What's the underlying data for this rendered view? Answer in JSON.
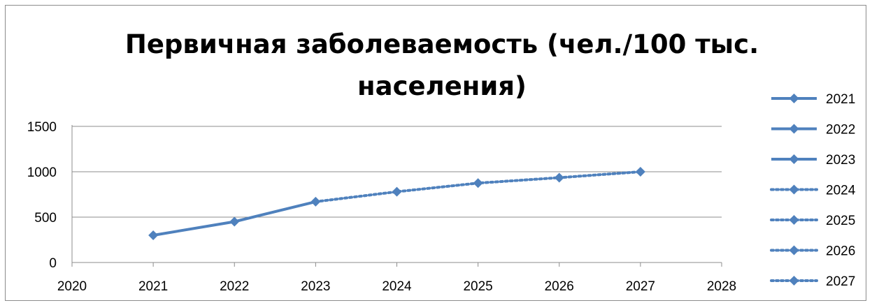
{
  "chart_data": {
    "type": "line",
    "title": "Первичная заболеваемость (чел./100 тыс. населения)",
    "title_lines": [
      "Первичная заболеваемость (чел./100 тыс.",
      "населения)"
    ],
    "xlabel": "",
    "ylabel": "",
    "xlim": [
      2020,
      2028
    ],
    "ylim": [
      0,
      1500
    ],
    "x_ticks": [
      "2020",
      "2021",
      "2022",
      "2023",
      "2024",
      "2025",
      "2026",
      "2027",
      "2028"
    ],
    "y_ticks": [
      "0",
      "500",
      "1000",
      "1500"
    ],
    "grid": true,
    "legend_position": "right",
    "color": "#4f81bd",
    "actual": {
      "style": "solid",
      "x": [
        2021,
        2022,
        2023
      ],
      "y": [
        300,
        450,
        670
      ]
    },
    "forecast": {
      "style": "dotted",
      "x": [
        2023,
        2024,
        2025,
        2026,
        2027
      ],
      "y": [
        670,
        780,
        875,
        935,
        1000
      ]
    },
    "legend": [
      {
        "label": "2021",
        "style": "solid"
      },
      {
        "label": "2022",
        "style": "solid"
      },
      {
        "label": "2023",
        "style": "solid"
      },
      {
        "label": "2024",
        "style": "dotted"
      },
      {
        "label": "2025",
        "style": "dotted"
      },
      {
        "label": "2026",
        "style": "dotted"
      },
      {
        "label": "2027",
        "style": "dotted"
      }
    ]
  }
}
